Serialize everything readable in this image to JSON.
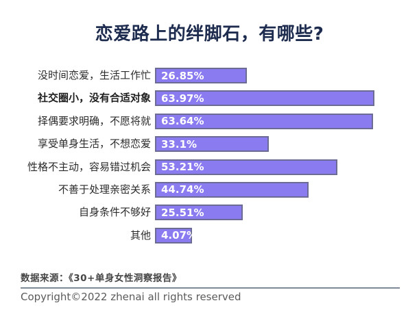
{
  "page": {
    "title": "恋爱路上的绊脚石，有哪些?",
    "source_note": "数据来源：《30+单身女性洞察报告》",
    "copyright": "Copyright©2022 zhenai all rights reserved"
  },
  "chart_data": {
    "type": "bar",
    "orientation": "horizontal",
    "title": "恋爱路上的绊脚石，有哪些?",
    "categories": [
      "没时间恋爱，生活工作忙",
      "社交圈小，没有合适对象",
      "择偶要求明确，不愿将就",
      "享受单身生活，不想恋爱",
      "性格不主动，容易错过机会",
      "不善于处理亲密关系",
      "自身条件不够好",
      "其他"
    ],
    "values": [
      26.85,
      63.97,
      63.64,
      33.1,
      53.21,
      44.74,
      25.51,
      4.07
    ],
    "value_labels": [
      "26.85%",
      "63.97%",
      "63.64%",
      "33.1%",
      "53.21%",
      "44.74%",
      "25.51%",
      "4.07%"
    ],
    "emphasized_category_index": 1,
    "xlim": [
      0,
      65
    ],
    "grid": false,
    "legend": false,
    "bar_color": "#8a7cf0",
    "bar_border_color": "#6b6b94",
    "title_color": "#1d2b4e",
    "value_label_color": "#ffffff"
  }
}
